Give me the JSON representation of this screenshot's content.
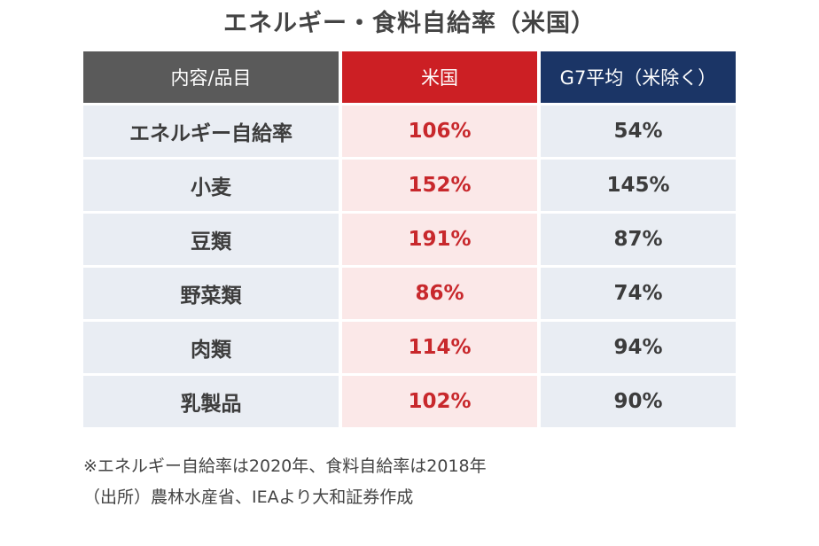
{
  "chart_data": {
    "type": "table",
    "title": "エネルギー・食料自給率（米国）",
    "columns": [
      "内容/品目",
      "米国",
      "G7平均（米除く）"
    ],
    "rows": [
      {
        "item": "エネルギー自給率",
        "us": "106%",
        "g7": "54%"
      },
      {
        "item": "小麦",
        "us": "152%",
        "g7": "145%"
      },
      {
        "item": "豆類",
        "us": "191%",
        "g7": "87%"
      },
      {
        "item": "野菜類",
        "us": "86%",
        "g7": "74%"
      },
      {
        "item": "肉類",
        "us": "114%",
        "g7": "94%"
      },
      {
        "item": "乳製品",
        "us": "102%",
        "g7": "90%"
      }
    ]
  },
  "notes": {
    "line1": "※エネルギー自給率は2020年、食料自給率は2018年",
    "line2": "（出所）農林水産省、IEAより大和証券作成"
  },
  "colors": {
    "header_item_bg": "#5a5a5a",
    "header_us_bg": "#cc1f24",
    "header_g7_bg": "#1b3566",
    "us_column_bg": "#fbe8e8",
    "us_value_text": "#c8282c",
    "neutral_bg": "#e9edf3"
  }
}
